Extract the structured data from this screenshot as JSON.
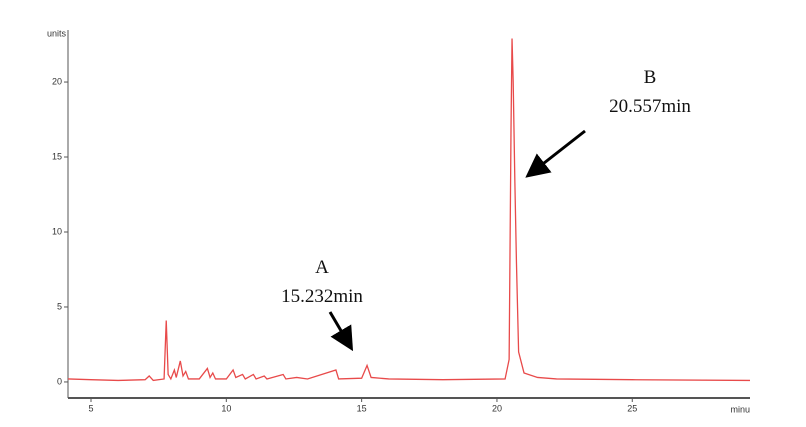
{
  "chart_data": {
    "type": "line",
    "y_label": "units",
    "x_label": "minu",
    "annotations": [
      "A",
      "15.232min",
      "B",
      "20.557min"
    ],
    "x": [
      4.15,
      5,
      6,
      7,
      7.15,
      7.3,
      7.7,
      7.78,
      7.85,
      7.95,
      8.08,
      8.15,
      8.3,
      8.4,
      8.5,
      8.6,
      9.0,
      9.3,
      9.4,
      9.5,
      9.6,
      10.0,
      10.25,
      10.35,
      10.6,
      10.7,
      11.0,
      11.1,
      11.4,
      11.5,
      12.1,
      12.2,
      12.6,
      13.0,
      14.05,
      14.15,
      15.0,
      15.2,
      15.35,
      16.0,
      18,
      20.3,
      20.45,
      20.52,
      20.557,
      20.6,
      20.66,
      20.72,
      20.8,
      21.0,
      21.5,
      22.2,
      25,
      29.35
    ],
    "series": [
      {
        "color": "#e84a4a",
        "values": [
          0.2,
          0.15,
          0.1,
          0.15,
          0.4,
          0.1,
          0.2,
          4.1,
          0.5,
          0.2,
          0.8,
          0.3,
          1.4,
          0.4,
          0.7,
          0.2,
          0.2,
          0.9,
          0.3,
          0.6,
          0.2,
          0.2,
          0.8,
          0.3,
          0.5,
          0.2,
          0.5,
          0.2,
          0.4,
          0.2,
          0.5,
          0.2,
          0.3,
          0.2,
          0.8,
          0.2,
          0.25,
          1.1,
          0.3,
          0.2,
          0.15,
          0.2,
          1.5,
          17,
          22.9,
          20,
          13.5,
          8,
          2,
          0.6,
          0.3,
          0.2,
          0.15,
          0.1
        ]
      }
    ],
    "xlim": [
      4.15,
      29.35
    ],
    "ylim": [
      -1.07,
      23.47
    ],
    "xticks": [
      5,
      10,
      15,
      20,
      25
    ],
    "yticks": [
      0,
      5,
      10,
      15,
      20
    ]
  }
}
